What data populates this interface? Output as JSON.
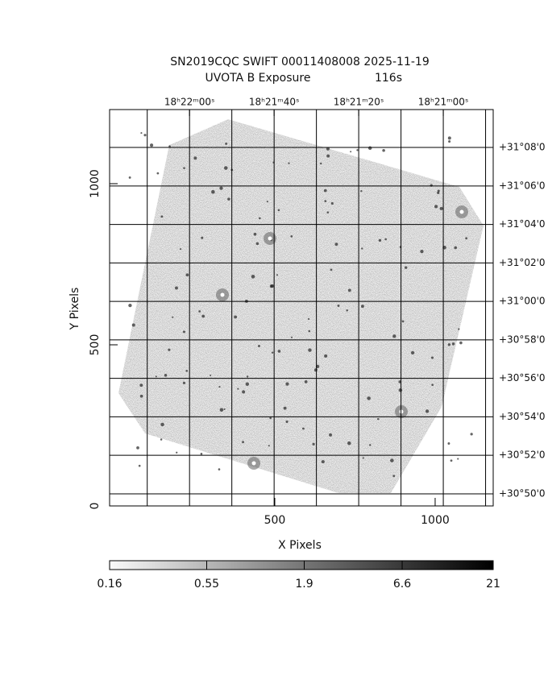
{
  "chart_data": {
    "type": "image",
    "title": "SN2019CQC SWIFT 00011408008 2025-11-19",
    "subtitle": "UVOTA B Exposure",
    "exposure": "116s",
    "x_label": "X Pixels",
    "y_label": "Y Pixels",
    "xlim": [
      -15,
      1181
    ],
    "xticks": [
      500,
      1000
    ],
    "ylim": [
      0,
      1230
    ],
    "yticks": [
      0,
      500,
      1000
    ],
    "x2lim": [
      1338.9,
      1248.2
    ],
    "x2grid": [
      1330,
      1320,
      1310,
      1300,
      1290,
      1280,
      1270,
      1260,
      1250
    ],
    "x2ticks": [
      {
        "value": 1320,
        "label": "18ʰ22ᵐ00ˢ"
      },
      {
        "value": 1300,
        "label": "18ʰ21ᵐ40ˢ"
      },
      {
        "value": 1280,
        "label": "18ʰ21ᵐ20ˢ"
      },
      {
        "value": 1260,
        "label": "18ʰ21ᵐ00ˢ"
      }
    ],
    "y2lim": [
      49.37,
      69.97
    ],
    "y2ticks": [
      {
        "value": 68,
        "label": "+31°08'0"
      },
      {
        "value": 66,
        "label": "+31°06'0"
      },
      {
        "value": 64,
        "label": "+31°04'0"
      },
      {
        "value": 62,
        "label": "+31°02'0"
      },
      {
        "value": 60,
        "label": "+31°00'0"
      },
      {
        "value": 58,
        "label": "+30°58'0"
      },
      {
        "value": 56,
        "label": "+30°56'0"
      },
      {
        "value": 54,
        "label": "+30°54'0"
      },
      {
        "value": 52,
        "label": "+30°52'0"
      },
      {
        "value": 50,
        "label": "+30°50'0"
      }
    ],
    "colorbar": {
      "lim": [
        0.16,
        21
      ],
      "log": true,
      "ticks": [
        0.16,
        0.55,
        1.9,
        6.6,
        21
      ]
    },
    "grid": true
  }
}
